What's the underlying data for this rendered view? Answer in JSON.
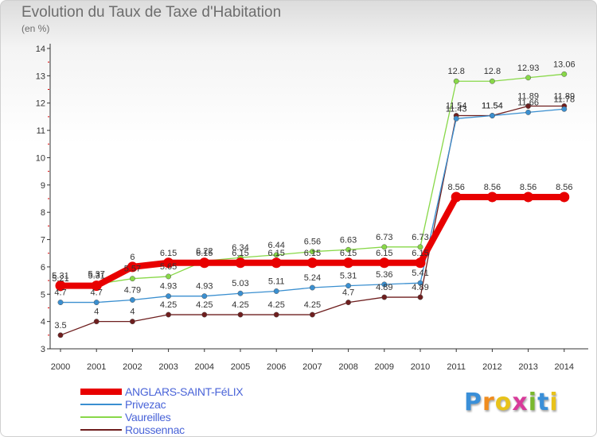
{
  "title": "Evolution du Taux de Taxe d'Habitation",
  "subtitle": "(en %)",
  "brand": {
    "letters": [
      "P",
      "r",
      "o",
      "x",
      "i",
      "t",
      "i"
    ],
    "colors": [
      "#3a8fd8",
      "#f08c1e",
      "#e8c21a",
      "#d83a9a",
      "#7ab82e",
      "#3a8fd8",
      "#e8c21a"
    ]
  },
  "chart_data": {
    "type": "line",
    "title": "Evolution du Taux de Taxe d'Habitation",
    "ylabel": "(en %)",
    "xlabel": "",
    "ylim": [
      3,
      14
    ],
    "yticks": [
      "3",
      "4",
      "5",
      "6",
      "7",
      "8",
      "9",
      "10",
      "11",
      "12",
      "13",
      "14"
    ],
    "categories": [
      "2000",
      "2001",
      "2002",
      "2003",
      "2004",
      "2005",
      "2006",
      "2007",
      "2008",
      "2009",
      "2010",
      "2011",
      "2012",
      "2013",
      "2014"
    ],
    "legend_position": "bottom-left",
    "grid": false,
    "series": [
      {
        "name": "ANGLARS-SAINT-FéLIX",
        "color": "#e80000",
        "values": [
          5.31,
          5.31,
          6,
          6.15,
          6.15,
          6.15,
          6.15,
          6.15,
          6.15,
          6.15,
          6.15,
          8.56,
          8.56,
          8.56,
          8.56
        ],
        "labels": [
          "5.31",
          "5.31",
          "6",
          "6.15",
          "6.15",
          "6.15",
          "6.15",
          "6.15",
          "6.15",
          "6.15",
          "6.15",
          "8.56",
          "8.56",
          "8.56",
          "8.56"
        ]
      },
      {
        "name": "Privezac",
        "color": "#3a8fd0",
        "values": [
          4.7,
          4.7,
          4.79,
          4.93,
          4.93,
          5.03,
          5.11,
          5.24,
          5.31,
          5.36,
          5.41,
          11.43,
          11.54,
          11.66,
          11.78
        ],
        "labels": [
          "4.7",
          "4.7",
          "4.79",
          "4.93",
          "4.93",
          "5.03",
          "5.11",
          "5.24",
          "5.31",
          "5.36",
          "5.41",
          "11.43",
          "11.54",
          "11.66",
          "11.78"
        ]
      },
      {
        "name": "Vaureilles",
        "color": "#88d848",
        "values": [
          5.21,
          5.37,
          5.57,
          5.65,
          6.22,
          6.34,
          6.44,
          6.56,
          6.63,
          6.73,
          6.73,
          12.8,
          12.8,
          12.93,
          13.06
        ],
        "labels": [
          "5.21",
          "5.37",
          "5.57",
          "5.65",
          "6.22",
          "6.34",
          "6.44",
          "6.56",
          "6.63",
          "6.73",
          "6.73",
          "12.8",
          "12.8",
          "12.93",
          "13.06"
        ]
      },
      {
        "name": "Roussennac",
        "color": "#6e1e1e",
        "values": [
          3.5,
          4,
          4,
          4.25,
          4.25,
          4.25,
          4.25,
          4.25,
          4.7,
          4.89,
          4.89,
          11.54,
          11.54,
          11.89,
          11.89
        ],
        "labels": [
          "3.5",
          "4",
          "4",
          "4.25",
          "4.25",
          "4.25",
          "4.25",
          "4.25",
          "4.7",
          "4.89",
          "4.89",
          "11.54",
          "11.54",
          "11.89",
          "11.89"
        ]
      }
    ]
  }
}
